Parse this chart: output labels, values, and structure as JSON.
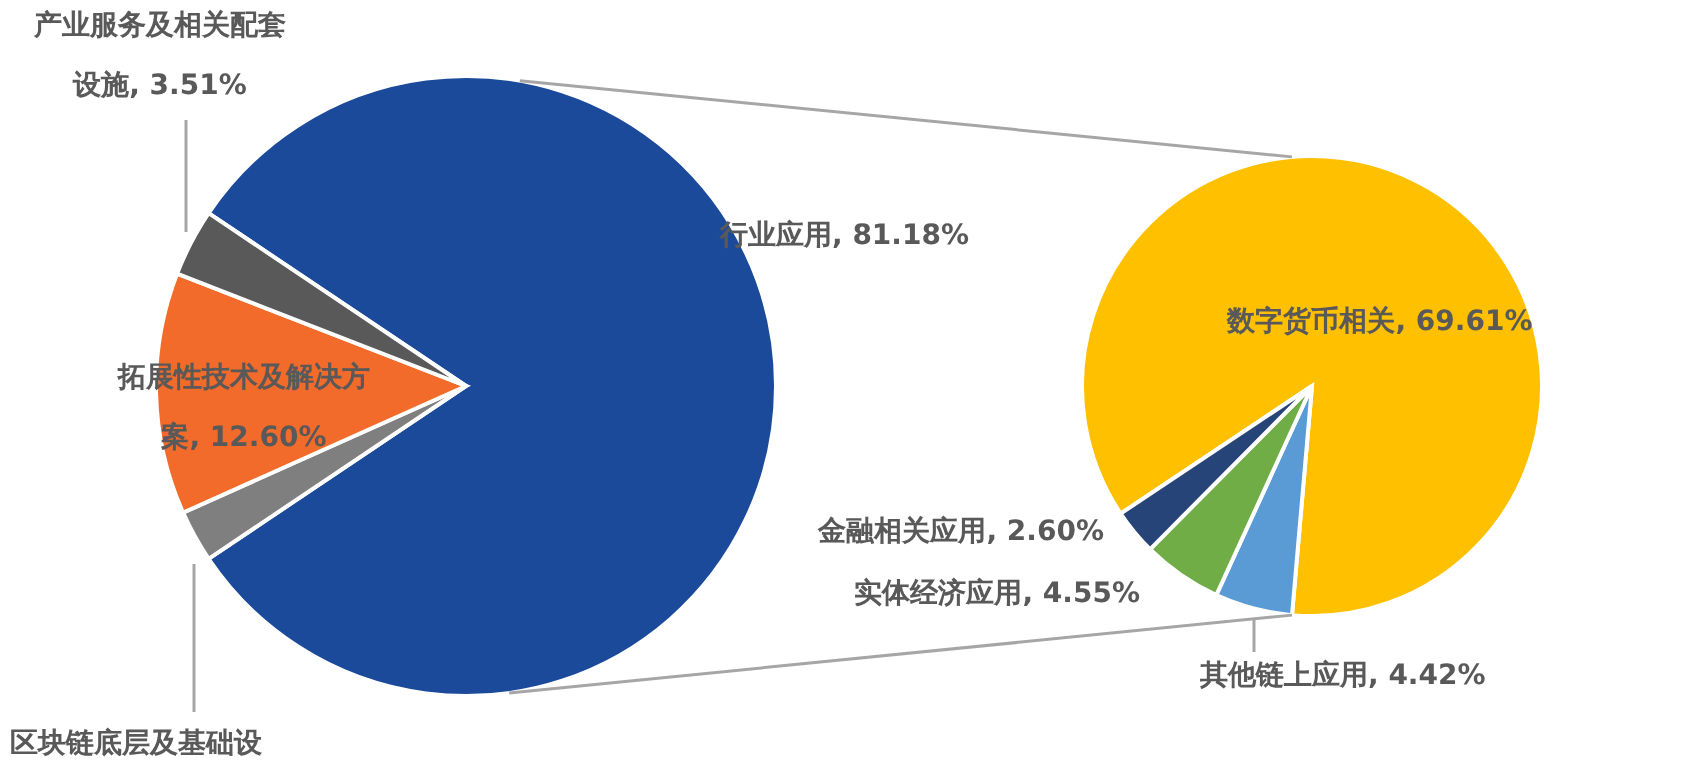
{
  "chart_data": [
    {
      "type": "pie",
      "categories": [
        "行业应用",
        "区块链底层及基础设",
        "拓展性技术及解决方案",
        "产业服务及相关配套设施"
      ],
      "values": [
        81.18,
        2.71,
        12.6,
        3.51
      ],
      "colors": [
        "#1b4a9a",
        "#7f7f7f",
        "#f26b2a",
        "#595959"
      ],
      "value_labels": [
        "81.18%",
        null,
        "12.60%",
        "3.51%"
      ]
    },
    {
      "type": "pie",
      "categories": [
        "数字货币相关",
        "其他链上应用",
        "实体经济应用",
        "金融相关应用"
      ],
      "values": [
        69.61,
        4.42,
        4.55,
        2.6
      ],
      "colors": [
        "#ffc000",
        "#5b9bd5",
        "#70ad47",
        "#264478"
      ],
      "value_labels": [
        "69.61%",
        "4.42%",
        "4.55%",
        "2.60%"
      ]
    }
  ]
}
